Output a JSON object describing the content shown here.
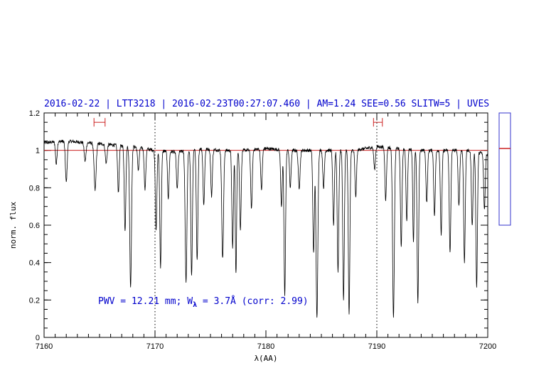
{
  "header": {
    "text": "2016-02-22 | LTT3218 | 2016-02-23T00:27:07.460 | AM=1.24 SEE=0.56 SLITW=5 | UVES"
  },
  "annotation": {
    "prefix": "PWV = 12.21 mm; W",
    "subscript": "λ",
    "suffix": " = 3.7Å (corr: 2.99)"
  },
  "colors": {
    "spectrum": "#000000",
    "continuum": "#cc2222",
    "header": "#0000cc",
    "side_box": "#3333cc"
  },
  "chart_data": {
    "type": "line",
    "title": "2016-02-22 | LTT3218 | 2016-02-23T00:27:07.460 | AM=1.24 SEE=0.56 SLITW=5 | UVES",
    "xlabel": "λ(AA)",
    "ylabel": "norm. flux",
    "xlim": [
      7160,
      7200
    ],
    "ylim": [
      0,
      1.2
    ],
    "xticks": [
      "7160",
      "7170",
      "7180",
      "7190",
      "7200"
    ],
    "yticks": [
      "0",
      "0.2",
      "0.4",
      "0.6",
      "0.8",
      "1",
      "1.2"
    ],
    "continuum_level": 1.0,
    "vertical_markers": [
      7170,
      7190
    ],
    "ranges": [
      [
        7164.5,
        7165.5
      ],
      [
        7189.7,
        7190.5
      ]
    ],
    "range_y": 1.15,
    "side_indicator_value": 1.01,
    "continuum": [
      [
        7160,
        1.04
      ],
      [
        7162,
        1.05
      ],
      [
        7164,
        1.04
      ],
      [
        7166,
        1.03
      ],
      [
        7168,
        1.02
      ],
      [
        7170,
        1.0
      ],
      [
        7172,
        0.99
      ],
      [
        7174,
        1.01
      ],
      [
        7176,
        1.0
      ],
      [
        7178,
        1.0
      ],
      [
        7180,
        1.01
      ],
      [
        7182,
        1.0
      ],
      [
        7184,
        1.0
      ],
      [
        7186,
        1.0
      ],
      [
        7188,
        1.0
      ],
      [
        7190,
        1.02
      ],
      [
        7192,
        1.01
      ],
      [
        7194,
        1.0
      ],
      [
        7196,
        1.0
      ],
      [
        7198,
        1.0
      ],
      [
        7200,
        0.98
      ]
    ],
    "lines": [
      [
        7161.1,
        0.12,
        0.07
      ],
      [
        7162.0,
        0.22,
        0.08
      ],
      [
        7163.7,
        0.1,
        0.08
      ],
      [
        7164.6,
        0.25,
        0.09
      ],
      [
        7165.6,
        0.1,
        0.08
      ],
      [
        7166.7,
        0.25,
        0.07
      ],
      [
        7167.3,
        0.45,
        0.07
      ],
      [
        7167.8,
        0.75,
        0.08
      ],
      [
        7168.5,
        0.12,
        0.07
      ],
      [
        7169.1,
        0.22,
        0.07
      ],
      [
        7170.1,
        0.42,
        0.07
      ],
      [
        7170.5,
        0.62,
        0.07
      ],
      [
        7171.2,
        0.25,
        0.07
      ],
      [
        7172.0,
        0.2,
        0.07
      ],
      [
        7172.8,
        0.7,
        0.08
      ],
      [
        7173.3,
        0.68,
        0.07
      ],
      [
        7173.8,
        0.6,
        0.07
      ],
      [
        7174.4,
        0.3,
        0.07
      ],
      [
        7175.1,
        0.25,
        0.07
      ],
      [
        7176.1,
        0.58,
        0.08
      ],
      [
        7177.0,
        0.52,
        0.07
      ],
      [
        7177.3,
        0.66,
        0.06
      ],
      [
        7177.7,
        0.42,
        0.07
      ],
      [
        7178.7,
        0.32,
        0.07
      ],
      [
        7179.6,
        0.22,
        0.07
      ],
      [
        7181.4,
        0.3,
        0.07
      ],
      [
        7181.7,
        0.78,
        0.07
      ],
      [
        7182.2,
        0.2,
        0.07
      ],
      [
        7183.0,
        0.2,
        0.08
      ],
      [
        7184.3,
        0.55,
        0.07
      ],
      [
        7184.6,
        0.9,
        0.08
      ],
      [
        7185.2,
        0.2,
        0.07
      ],
      [
        7186.1,
        0.4,
        0.07
      ],
      [
        7186.5,
        0.65,
        0.07
      ],
      [
        7187.0,
        0.8,
        0.07
      ],
      [
        7187.5,
        0.88,
        0.07
      ],
      [
        7188.1,
        0.25,
        0.07
      ],
      [
        7189.8,
        0.12,
        0.07
      ],
      [
        7190.8,
        0.28,
        0.07
      ],
      [
        7191.5,
        0.9,
        0.08
      ],
      [
        7192.2,
        0.52,
        0.07
      ],
      [
        7192.7,
        0.38,
        0.07
      ],
      [
        7193.3,
        0.5,
        0.06
      ],
      [
        7193.7,
        0.82,
        0.07
      ],
      [
        7194.5,
        0.28,
        0.07
      ],
      [
        7195.2,
        0.35,
        0.07
      ],
      [
        7195.8,
        0.45,
        0.07
      ],
      [
        7196.6,
        0.55,
        0.07
      ],
      [
        7197.4,
        0.3,
        0.07
      ],
      [
        7197.9,
        0.6,
        0.07
      ],
      [
        7198.6,
        0.4,
        0.07
      ],
      [
        7199.0,
        0.72,
        0.07
      ],
      [
        7199.7,
        0.3,
        0.07
      ]
    ]
  }
}
